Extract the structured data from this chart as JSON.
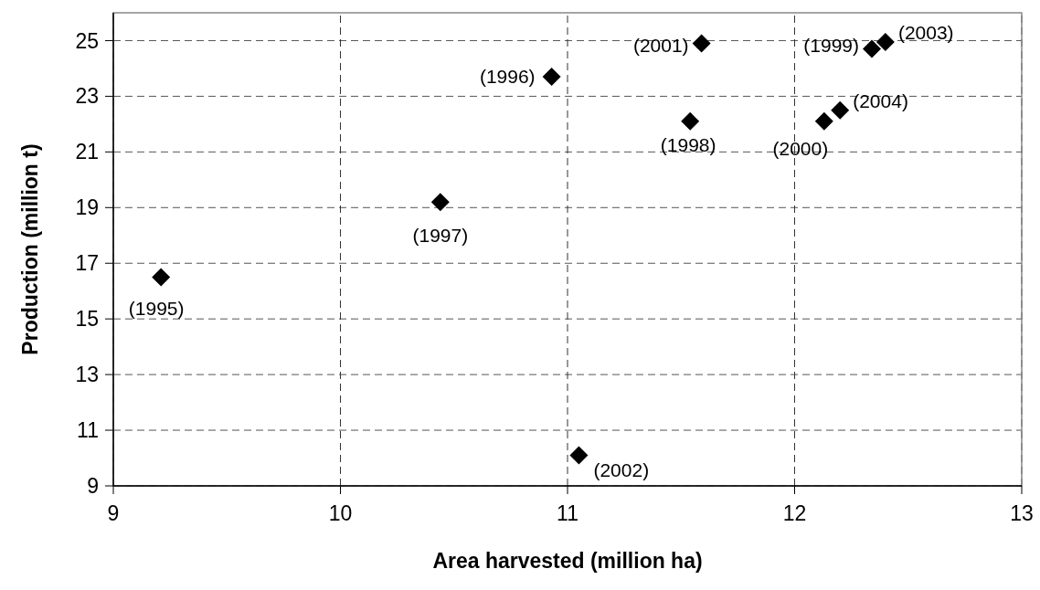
{
  "chart_data": {
    "type": "scatter",
    "xlabel": "Area harvested (million ha)",
    "ylabel": "Production (million t)",
    "x": [
      9.21,
      10.93,
      10.44,
      11.54,
      12.34,
      12.13,
      11.59,
      11.05,
      12.4,
      12.2
    ],
    "series": [
      {
        "color": "#000000",
        "values": [
          16.5,
          23.7,
          19.2,
          22.1,
          24.7,
          22.1,
          24.9,
          10.1,
          24.95,
          22.5
        ]
      }
    ],
    "annotations": [
      {
        "text": "(1995)",
        "x": 9.21,
        "y": 16.5
      },
      {
        "text": "(1996)",
        "x": 10.93,
        "y": 23.7
      },
      {
        "text": "(1997)",
        "x": 10.44,
        "y": 19.2
      },
      {
        "text": "(1998)",
        "x": 11.54,
        "y": 22.1
      },
      {
        "text": "(1999)",
        "x": 12.34,
        "y": 24.7
      },
      {
        "text": "(2000)",
        "x": 12.13,
        "y": 22.1
      },
      {
        "text": "(2001)",
        "x": 11.59,
        "y": 24.9
      },
      {
        "text": "(2002)",
        "x": 11.05,
        "y": 10.1
      },
      {
        "text": "(2003)",
        "x": 12.4,
        "y": 24.95
      },
      {
        "text": "(2004)",
        "x": 12.2,
        "y": 22.5
      }
    ],
    "xlim": [
      9,
      13
    ],
    "xticks": [
      9,
      10,
      11,
      12,
      13
    ],
    "ylim": [
      9,
      26
    ],
    "yticks": [
      9,
      11,
      13,
      15,
      17,
      19,
      21,
      23,
      25
    ],
    "grid": true,
    "marker": "diamond"
  }
}
